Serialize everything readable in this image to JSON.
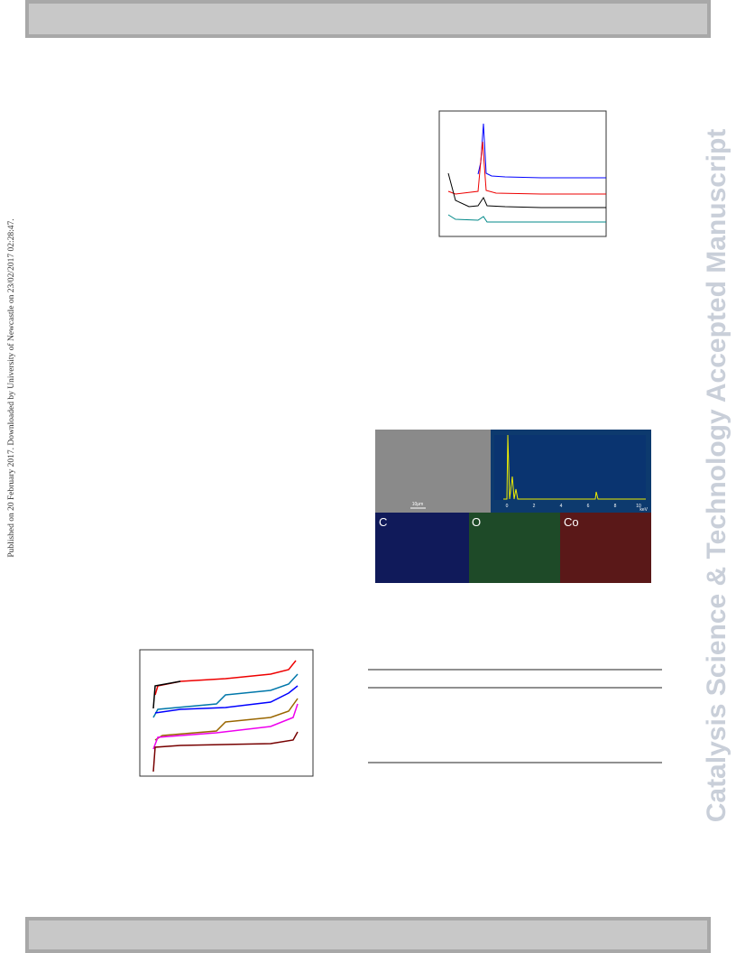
{
  "side_watermark": "Catalysis Science & Technology Accepted Manuscript",
  "download_notice": "Published on 20 February 2017. Downloaded by University of Newcastle on 23/02/2017 02:28:47.",
  "eds_figure": {
    "scale_bar": "10μm",
    "spectrum_ticks": [
      "0",
      "2",
      "4",
      "6",
      "8",
      "10"
    ],
    "spectrum_unit": "keV",
    "maps": [
      "C",
      "O",
      "Co"
    ]
  }
}
